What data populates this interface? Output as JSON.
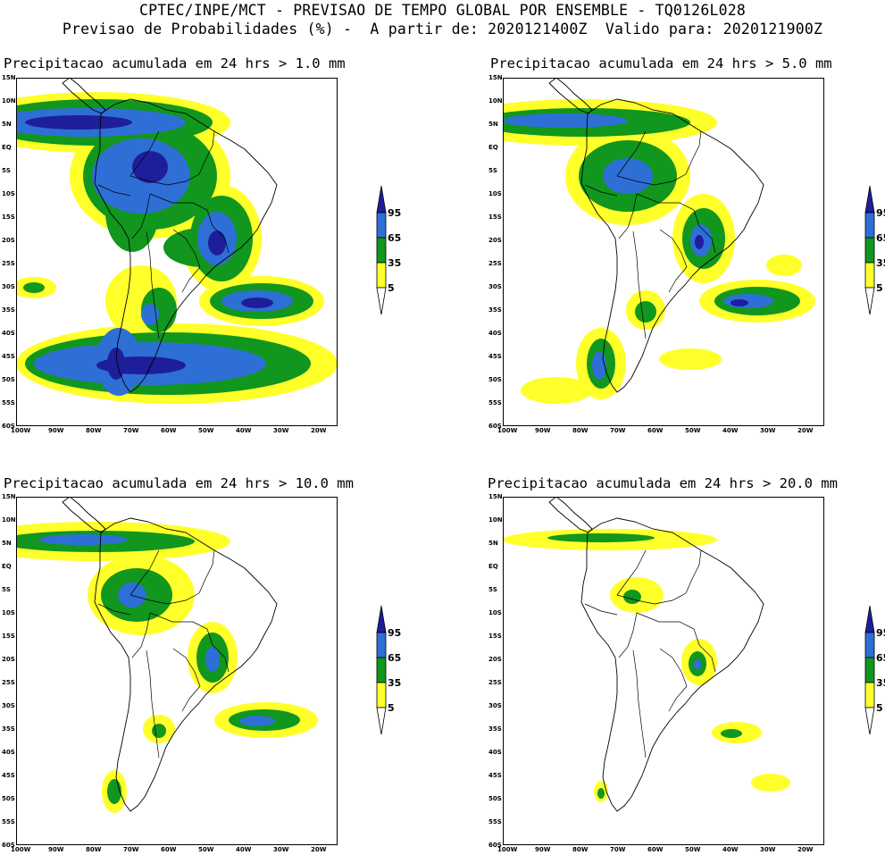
{
  "header": {
    "line1": "CPTEC/INPE/MCT - PREVISAO DE TEMPO GLOBAL POR ENSEMBLE - TQ0126L028",
    "line2": "Previsao de Probabilidades (%) -  A partir de: 2020121400Z  Valido para: 2020121900Z"
  },
  "axes": {
    "lat_labels": [
      "15N",
      "10N",
      "5N",
      "EQ",
      "5S",
      "10S",
      "15S",
      "20S",
      "25S",
      "30S",
      "35S",
      "40S",
      "45S",
      "50S",
      "55S",
      "60S"
    ],
    "lon_labels": [
      "100W",
      "90W",
      "80W",
      "70W",
      "60W",
      "50W",
      "40W",
      "30W",
      "20W"
    ]
  },
  "colorbar": {
    "levels": [
      "95",
      "65",
      "35",
      "5"
    ],
    "colors": [
      "#1e1e9a",
      "#2e6fd6",
      "#11961e",
      "#ffff2a"
    ]
  },
  "panels": [
    {
      "title": "Precipitacao acumulada em 24 hrs > 1.0 mm",
      "threshold_mm": 1.0
    },
    {
      "title": "Precipitacao acumulada em 24 hrs > 5.0 mm",
      "threshold_mm": 5.0
    },
    {
      "title": "Precipitacao acumulada em 24 hrs > 10.0 mm",
      "threshold_mm": 10.0
    },
    {
      "title": "Precipitacao acumulada em 24 hrs > 20.0 mm",
      "threshold_mm": 20.0
    }
  ]
}
